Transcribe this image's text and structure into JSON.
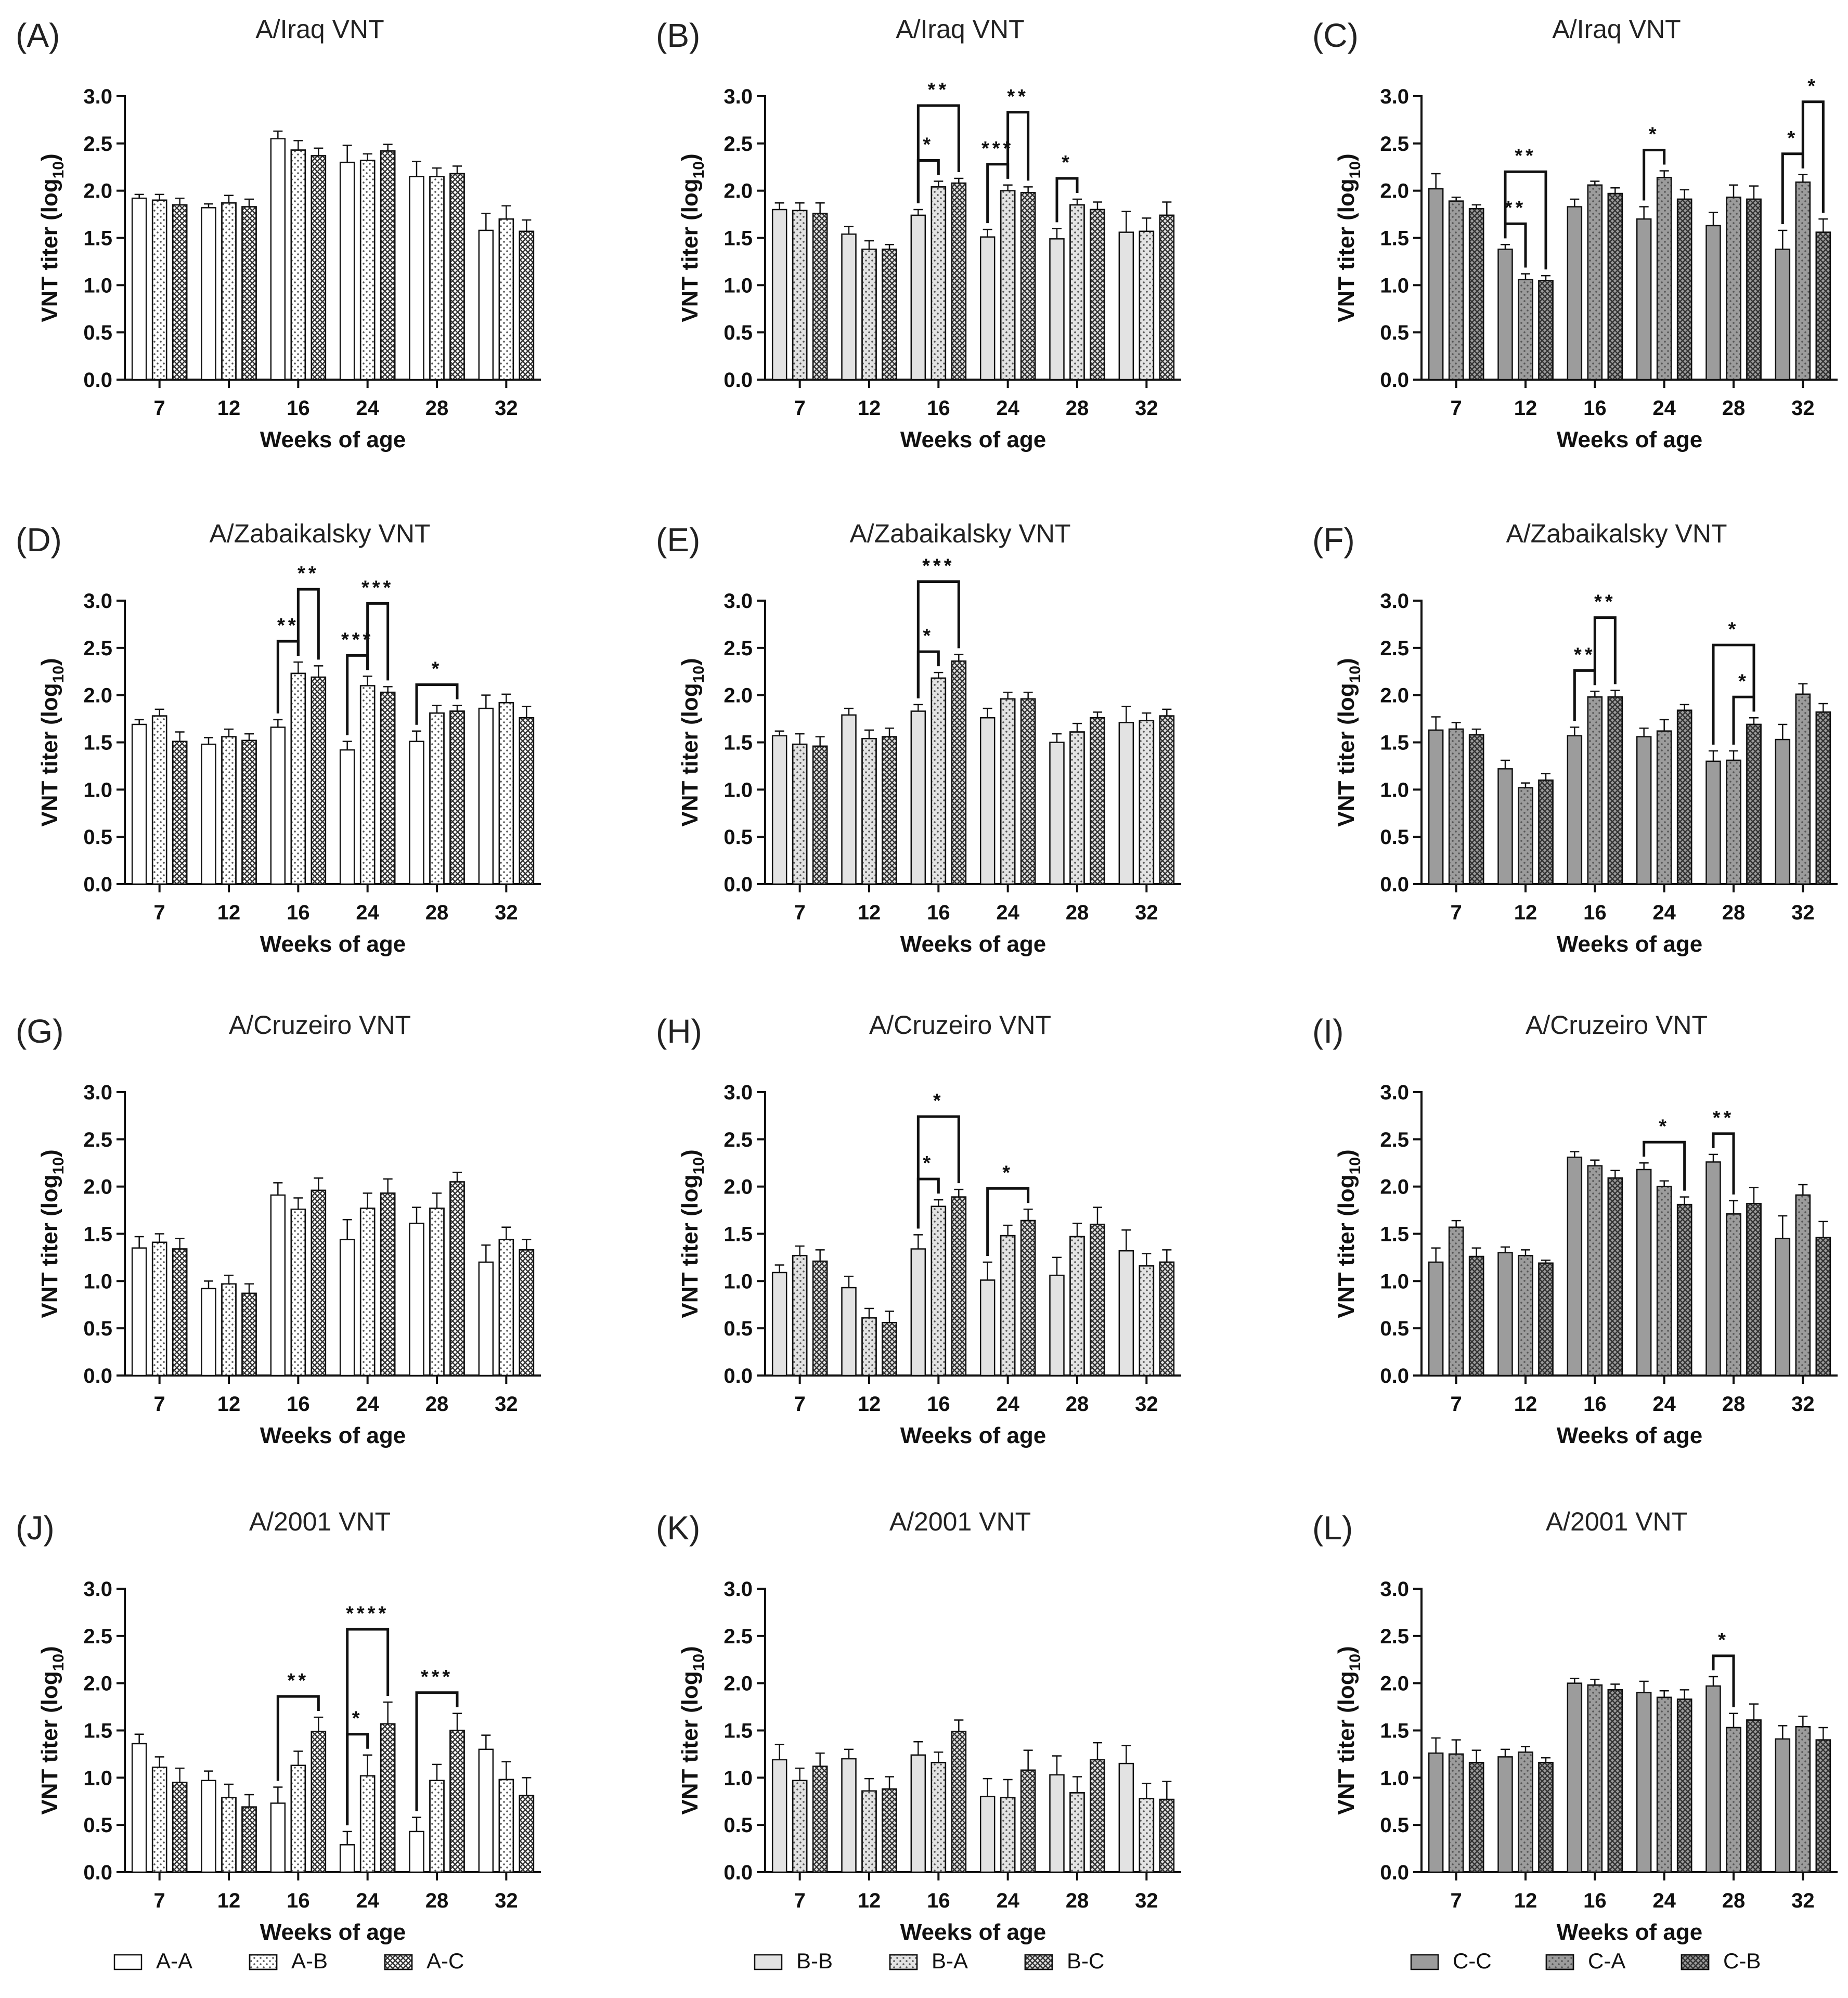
{
  "figure": {
    "categories": [
      "7",
      "12",
      "16",
      "24",
      "28",
      "32"
    ],
    "ylim": [
      0,
      3.0
    ],
    "yticks": [
      "0.0",
      "0.5",
      "1.0",
      "1.5",
      "2.0",
      "2.5",
      "3.0"
    ],
    "xlabel": "Weeks of age",
    "ylabel": "VNT titer (log10)",
    "ylabel_main": "VNT titer (log",
    "ylabel_sub": "10",
    "ylabel_end": ")"
  },
  "groups": [
    {
      "legend": [
        {
          "name": "A-A",
          "fill": "#ffffff",
          "pattern": "none"
        },
        {
          "name": "A-B",
          "fill": "#ffffff",
          "pattern": "dots"
        },
        {
          "name": "A-C",
          "fill": "#ffffff",
          "pattern": "cross"
        }
      ]
    },
    {
      "legend": [
        {
          "name": "B-B",
          "fill": "#e3e3e3",
          "pattern": "none"
        },
        {
          "name": "B-A",
          "fill": "#e3e3e3",
          "pattern": "dots"
        },
        {
          "name": "B-C",
          "fill": "#e3e3e3",
          "pattern": "cross"
        }
      ]
    },
    {
      "legend": [
        {
          "name": "C-C",
          "fill": "#9c9c9c",
          "pattern": "none"
        },
        {
          "name": "C-A",
          "fill": "#9c9c9c",
          "pattern": "dots"
        },
        {
          "name": "C-B",
          "fill": "#9c9c9c",
          "pattern": "cross"
        }
      ]
    }
  ],
  "chart_data": [
    {
      "type": "bar",
      "letter": "(A)",
      "title": "A/Iraq VNT",
      "group": 0,
      "series": [
        {
          "name": "A-A",
          "values": [
            1.92,
            1.82,
            2.55,
            2.3,
            2.15,
            1.58
          ],
          "errors": [
            0.04,
            0.04,
            0.08,
            0.18,
            0.16,
            0.18
          ]
        },
        {
          "name": "A-B",
          "values": [
            1.9,
            1.87,
            2.43,
            2.32,
            2.15,
            1.7
          ],
          "errors": [
            0.06,
            0.08,
            0.1,
            0.07,
            0.09,
            0.14
          ]
        },
        {
          "name": "A-C",
          "values": [
            1.85,
            1.83,
            2.37,
            2.42,
            2.18,
            1.57
          ],
          "errors": [
            0.07,
            0.08,
            0.08,
            0.07,
            0.08,
            0.12
          ]
        }
      ],
      "significance": []
    },
    {
      "type": "bar",
      "letter": "(B)",
      "title": "A/Iraq VNT",
      "group": 1,
      "series": [
        {
          "name": "B-B",
          "values": [
            1.8,
            1.54,
            1.74,
            1.51,
            1.49,
            1.56
          ],
          "errors": [
            0.07,
            0.08,
            0.06,
            0.08,
            0.11,
            0.22
          ]
        },
        {
          "name": "B-A",
          "values": [
            1.79,
            1.38,
            2.04,
            2.0,
            1.85,
            1.57
          ],
          "errors": [
            0.08,
            0.09,
            0.06,
            0.06,
            0.06,
            0.14
          ]
        },
        {
          "name": "B-C",
          "values": [
            1.76,
            1.38,
            2.08,
            1.98,
            1.8,
            1.74
          ],
          "errors": [
            0.11,
            0.05,
            0.05,
            0.06,
            0.08,
            0.14
          ]
        }
      ],
      "significance": [
        {
          "cat": 2,
          "from": 0,
          "to": 1,
          "label": "*"
        },
        {
          "cat": 2,
          "from": 0,
          "to": 2,
          "label": "**"
        },
        {
          "cat": 3,
          "from": 0,
          "to": 1,
          "label": "***"
        },
        {
          "cat": 3,
          "from": 1,
          "to": 2,
          "label": "**"
        },
        {
          "cat": 4,
          "from": 0,
          "to": 1,
          "label": "*"
        }
      ]
    },
    {
      "type": "bar",
      "letter": "(C)",
      "title": "A/Iraq VNT",
      "group": 2,
      "series": [
        {
          "name": "C-C",
          "values": [
            2.02,
            1.38,
            1.83,
            1.7,
            1.63,
            1.38
          ],
          "errors": [
            0.16,
            0.05,
            0.08,
            0.13,
            0.14,
            0.2
          ]
        },
        {
          "name": "C-A",
          "values": [
            1.89,
            1.06,
            2.06,
            2.14,
            1.93,
            2.09
          ],
          "errors": [
            0.04,
            0.06,
            0.04,
            0.07,
            0.13,
            0.08
          ]
        },
        {
          "name": "C-B",
          "values": [
            1.81,
            1.05,
            1.97,
            1.91,
            1.91,
            1.56
          ],
          "errors": [
            0.04,
            0.05,
            0.06,
            0.1,
            0.14,
            0.14
          ]
        }
      ],
      "significance": [
        {
          "cat": 1,
          "from": 0,
          "to": 1,
          "label": "**"
        },
        {
          "cat": 1,
          "from": 0,
          "to": 2,
          "label": "**"
        },
        {
          "cat": 3,
          "from": 0,
          "to": 1,
          "label": "*"
        },
        {
          "cat": 5,
          "from": 0,
          "to": 1,
          "label": "*"
        },
        {
          "cat": 5,
          "from": 1,
          "to": 2,
          "label": "*"
        }
      ]
    },
    {
      "type": "bar",
      "letter": "(D)",
      "title": "A/Zabaikalsky VNT",
      "group": 0,
      "series": [
        {
          "name": "A-A",
          "values": [
            1.69,
            1.48,
            1.66,
            1.42,
            1.51,
            1.86
          ],
          "errors": [
            0.05,
            0.07,
            0.08,
            0.09,
            0.11,
            0.14
          ]
        },
        {
          "name": "A-B",
          "values": [
            1.78,
            1.56,
            2.23,
            2.1,
            1.81,
            1.92
          ],
          "errors": [
            0.07,
            0.08,
            0.12,
            0.1,
            0.08,
            0.09
          ]
        },
        {
          "name": "A-C",
          "values": [
            1.51,
            1.52,
            2.19,
            2.03,
            1.83,
            1.76
          ],
          "errors": [
            0.1,
            0.07,
            0.12,
            0.06,
            0.06,
            0.12
          ]
        }
      ],
      "significance": [
        {
          "cat": 2,
          "from": 0,
          "to": 1,
          "label": "**"
        },
        {
          "cat": 2,
          "from": 1,
          "to": 2,
          "label": "**"
        },
        {
          "cat": 3,
          "from": 0,
          "to": 1,
          "label": "***"
        },
        {
          "cat": 3,
          "from": 1,
          "to": 2,
          "label": "***"
        },
        {
          "cat": 4,
          "from": 0,
          "to": 2,
          "label": "*"
        }
      ]
    },
    {
      "type": "bar",
      "letter": "(E)",
      "title": "A/Zabaikalsky VNT",
      "group": 1,
      "series": [
        {
          "name": "B-B",
          "values": [
            1.57,
            1.79,
            1.83,
            1.76,
            1.5,
            1.71
          ],
          "errors": [
            0.05,
            0.07,
            0.07,
            0.1,
            0.09,
            0.17
          ]
        },
        {
          "name": "B-A",
          "values": [
            1.48,
            1.54,
            2.18,
            1.96,
            1.61,
            1.73
          ],
          "errors": [
            0.11,
            0.09,
            0.06,
            0.07,
            0.09,
            0.08
          ]
        },
        {
          "name": "B-C",
          "values": [
            1.46,
            1.56,
            2.36,
            1.96,
            1.76,
            1.78
          ],
          "errors": [
            0.1,
            0.09,
            0.07,
            0.07,
            0.06,
            0.07
          ]
        }
      ],
      "significance": [
        {
          "cat": 2,
          "from": 0,
          "to": 1,
          "label": "*"
        },
        {
          "cat": 2,
          "from": 0,
          "to": 2,
          "label": "***"
        }
      ]
    },
    {
      "type": "bar",
      "letter": "(F)",
      "title": "A/Zabaikalsky VNT",
      "group": 2,
      "series": [
        {
          "name": "C-C",
          "values": [
            1.63,
            1.22,
            1.57,
            1.56,
            1.3,
            1.53
          ],
          "errors": [
            0.14,
            0.09,
            0.09,
            0.09,
            0.11,
            0.16
          ]
        },
        {
          "name": "C-A",
          "values": [
            1.64,
            1.02,
            1.98,
            1.62,
            1.31,
            2.01
          ],
          "errors": [
            0.07,
            0.05,
            0.06,
            0.12,
            0.1,
            0.11
          ]
        },
        {
          "name": "C-B",
          "values": [
            1.58,
            1.1,
            1.98,
            1.84,
            1.69,
            1.82
          ],
          "errors": [
            0.06,
            0.07,
            0.07,
            0.06,
            0.07,
            0.09
          ]
        }
      ],
      "significance": [
        {
          "cat": 2,
          "from": 0,
          "to": 1,
          "label": "**"
        },
        {
          "cat": 2,
          "from": 1,
          "to": 2,
          "label": "**"
        },
        {
          "cat": 4,
          "from": 1,
          "to": 2,
          "label": "*"
        },
        {
          "cat": 4,
          "from": 0,
          "to": 2,
          "label": "*"
        }
      ]
    },
    {
      "type": "bar",
      "letter": "(G)",
      "title": "A/Cruzeiro VNT",
      "group": 0,
      "series": [
        {
          "name": "A-A",
          "values": [
            1.35,
            0.92,
            1.91,
            1.44,
            1.61,
            1.2
          ],
          "errors": [
            0.12,
            0.08,
            0.13,
            0.21,
            0.17,
            0.18
          ]
        },
        {
          "name": "A-B",
          "values": [
            1.41,
            0.97,
            1.76,
            1.77,
            1.77,
            1.44
          ],
          "errors": [
            0.09,
            0.09,
            0.12,
            0.16,
            0.16,
            0.13
          ]
        },
        {
          "name": "A-C",
          "values": [
            1.34,
            0.87,
            1.96,
            1.93,
            2.05,
            1.33
          ],
          "errors": [
            0.11,
            0.1,
            0.13,
            0.15,
            0.1,
            0.11
          ]
        }
      ],
      "significance": []
    },
    {
      "type": "bar",
      "letter": "(H)",
      "title": "A/Cruzeiro VNT",
      "group": 1,
      "series": [
        {
          "name": "B-B",
          "values": [
            1.09,
            0.93,
            1.34,
            1.01,
            1.06,
            1.32
          ],
          "errors": [
            0.08,
            0.12,
            0.15,
            0.19,
            0.19,
            0.22
          ]
        },
        {
          "name": "B-A",
          "values": [
            1.27,
            0.61,
            1.79,
            1.48,
            1.47,
            1.16
          ],
          "errors": [
            0.1,
            0.1,
            0.07,
            0.11,
            0.14,
            0.13
          ]
        },
        {
          "name": "B-C",
          "values": [
            1.21,
            0.56,
            1.89,
            1.64,
            1.6,
            1.2
          ],
          "errors": [
            0.12,
            0.12,
            0.08,
            0.12,
            0.18,
            0.13
          ]
        }
      ],
      "significance": [
        {
          "cat": 2,
          "from": 0,
          "to": 1,
          "label": "*"
        },
        {
          "cat": 2,
          "from": 0,
          "to": 2,
          "label": "*"
        },
        {
          "cat": 3,
          "from": 0,
          "to": 2,
          "label": "*"
        }
      ]
    },
    {
      "type": "bar",
      "letter": "(I)",
      "title": "A/Cruzeiro VNT",
      "group": 2,
      "series": [
        {
          "name": "C-C",
          "values": [
            1.2,
            1.3,
            2.31,
            2.18,
            2.26,
            1.45
          ],
          "errors": [
            0.15,
            0.06,
            0.06,
            0.07,
            0.08,
            0.24
          ]
        },
        {
          "name": "C-A",
          "values": [
            1.57,
            1.27,
            2.22,
            2.0,
            1.71,
            1.91
          ],
          "errors": [
            0.07,
            0.06,
            0.06,
            0.06,
            0.14,
            0.11
          ]
        },
        {
          "name": "C-B",
          "values": [
            1.26,
            1.19,
            2.09,
            1.81,
            1.82,
            1.46
          ],
          "errors": [
            0.09,
            0.03,
            0.08,
            0.08,
            0.17,
            0.17
          ]
        }
      ],
      "significance": [
        {
          "cat": 3,
          "from": 0,
          "to": 2,
          "label": "*"
        },
        {
          "cat": 4,
          "from": 0,
          "to": 1,
          "label": "**"
        }
      ]
    },
    {
      "type": "bar",
      "letter": "(J)",
      "title": "A/2001 VNT",
      "group": 0,
      "series": [
        {
          "name": "A-A",
          "values": [
            1.36,
            0.97,
            0.73,
            0.29,
            0.43,
            1.3
          ],
          "errors": [
            0.1,
            0.1,
            0.17,
            0.14,
            0.15,
            0.15
          ]
        },
        {
          "name": "A-B",
          "values": [
            1.11,
            0.79,
            1.13,
            1.02,
            0.97,
            0.98
          ],
          "errors": [
            0.11,
            0.14,
            0.15,
            0.22,
            0.17,
            0.19
          ]
        },
        {
          "name": "A-C",
          "values": [
            0.95,
            0.69,
            1.49,
            1.57,
            1.5,
            0.81
          ],
          "errors": [
            0.15,
            0.13,
            0.15,
            0.23,
            0.18,
            0.19
          ]
        }
      ],
      "significance": [
        {
          "cat": 2,
          "from": 0,
          "to": 2,
          "label": "**"
        },
        {
          "cat": 3,
          "from": 0,
          "to": 1,
          "label": "*"
        },
        {
          "cat": 3,
          "from": 0,
          "to": 2,
          "label": "****"
        },
        {
          "cat": 4,
          "from": 0,
          "to": 2,
          "label": "***"
        }
      ]
    },
    {
      "type": "bar",
      "letter": "(K)",
      "title": "A/2001 VNT",
      "group": 1,
      "series": [
        {
          "name": "B-B",
          "values": [
            1.19,
            1.2,
            1.24,
            0.8,
            1.03,
            1.15
          ],
          "errors": [
            0.16,
            0.1,
            0.14,
            0.19,
            0.2,
            0.19
          ]
        },
        {
          "name": "B-A",
          "values": [
            0.97,
            0.86,
            1.16,
            0.79,
            0.84,
            0.78
          ],
          "errors": [
            0.13,
            0.13,
            0.11,
            0.19,
            0.17,
            0.16
          ]
        },
        {
          "name": "B-C",
          "values": [
            1.12,
            0.88,
            1.49,
            1.08,
            1.19,
            0.77
          ],
          "errors": [
            0.14,
            0.13,
            0.12,
            0.21,
            0.18,
            0.19
          ]
        }
      ],
      "significance": []
    },
    {
      "type": "bar",
      "letter": "(L)",
      "title": "A/2001 VNT",
      "group": 2,
      "series": [
        {
          "name": "C-C",
          "values": [
            1.26,
            1.22,
            2.0,
            1.9,
            1.97,
            1.41
          ],
          "errors": [
            0.16,
            0.08,
            0.05,
            0.12,
            0.1,
            0.14
          ]
        },
        {
          "name": "C-A",
          "values": [
            1.25,
            1.27,
            1.98,
            1.85,
            1.53,
            1.54
          ],
          "errors": [
            0.15,
            0.06,
            0.06,
            0.07,
            0.15,
            0.11
          ]
        },
        {
          "name": "C-B",
          "values": [
            1.16,
            1.16,
            1.93,
            1.83,
            1.61,
            1.4
          ],
          "errors": [
            0.13,
            0.05,
            0.06,
            0.1,
            0.17,
            0.13
          ]
        }
      ],
      "significance": [
        {
          "cat": 4,
          "from": 0,
          "to": 1,
          "label": "*"
        }
      ]
    }
  ]
}
